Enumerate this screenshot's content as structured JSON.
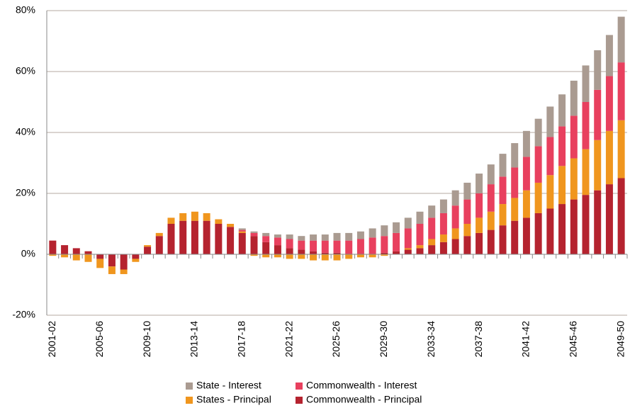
{
  "chart_data": {
    "type": "stacked-bar",
    "categories": [
      "2001-02",
      null,
      null,
      null,
      "2005-06",
      null,
      null,
      null,
      "2009-10",
      null,
      null,
      null,
      "2013-14",
      null,
      null,
      null,
      "2017-18",
      null,
      null,
      null,
      "2021-22",
      null,
      null,
      null,
      "2025-26",
      null,
      null,
      null,
      "2029-30",
      null,
      null,
      null,
      "2033-34",
      null,
      null,
      null,
      "2037-38",
      null,
      null,
      null,
      "2041-42",
      null,
      null,
      null,
      "2045-46",
      null,
      null,
      null,
      "2049-50"
    ],
    "series": [
      {
        "name": "Commonwealth - Principal",
        "color": "#b5232f",
        "values": [
          4.5,
          3,
          2,
          1,
          -1.5,
          -4,
          -5,
          -1.5,
          2.5,
          6,
          10,
          11,
          11,
          11,
          10,
          9,
          7,
          6,
          4,
          3,
          2,
          1.5,
          1,
          0.5,
          0.5,
          0,
          0,
          0,
          0.5,
          1,
          1.5,
          2,
          3,
          4,
          5,
          6,
          7,
          8,
          9.5,
          11,
          12,
          13.5,
          15,
          16.5,
          18,
          19.5,
          21,
          23,
          25
        ]
      },
      {
        "name": "States - Principal",
        "color": "#f0961e",
        "values": [
          -0.5,
          -1,
          -2,
          -2.5,
          -3,
          -2.5,
          -1.5,
          -1,
          0.5,
          1,
          2,
          2.5,
          3,
          2.5,
          1.5,
          1,
          0.5,
          -0.5,
          -1,
          -1,
          -1.5,
          -1.5,
          -2,
          -2,
          -2,
          -1.5,
          -1,
          -1,
          -0.5,
          0,
          0.5,
          1,
          2,
          2.5,
          3.5,
          4,
          5,
          6,
          7,
          7.5,
          9,
          10,
          11,
          12.5,
          13.5,
          15,
          16.5,
          17.5,
          19
        ]
      },
      {
        "name": "Commonwealth - Interest",
        "color": "#e8405e",
        "values": [
          0,
          0,
          0,
          0,
          0,
          0,
          0,
          0,
          0,
          0,
          0,
          0,
          0,
          0,
          0,
          0,
          0.5,
          1,
          2,
          2.5,
          3,
          3,
          3.5,
          4,
          4,
          4.5,
          5,
          5.5,
          5.5,
          6,
          6.5,
          7,
          7,
          7,
          7.5,
          8,
          8,
          9,
          9,
          10,
          11,
          12,
          12.5,
          13,
          14,
          15.5,
          16.5,
          18,
          19
        ]
      },
      {
        "name": "State - Interest",
        "color": "#aa9b91",
        "values": [
          0,
          0,
          0,
          0,
          0,
          0,
          0,
          0,
          0,
          0,
          0,
          0,
          0,
          0,
          0,
          0,
          0.5,
          0.5,
          1,
          1,
          1.5,
          1.5,
          2,
          2,
          2.5,
          2.5,
          2.5,
          3,
          3.5,
          3.5,
          3.5,
          4,
          4,
          4.5,
          5,
          5.5,
          6.5,
          6.5,
          7.5,
          8,
          8.5,
          9,
          10,
          10.5,
          11.5,
          12,
          13,
          13.5,
          15
        ]
      }
    ],
    "ylim": [
      -20,
      80
    ],
    "yticks": [
      {
        "value": -20,
        "label": "-20%"
      },
      {
        "value": 0,
        "label": "0%"
      },
      {
        "value": 20,
        "label": "20%"
      },
      {
        "value": 40,
        "label": "40%"
      },
      {
        "value": 60,
        "label": "60%"
      },
      {
        "value": 80,
        "label": "80%"
      }
    ],
    "grid": true
  }
}
